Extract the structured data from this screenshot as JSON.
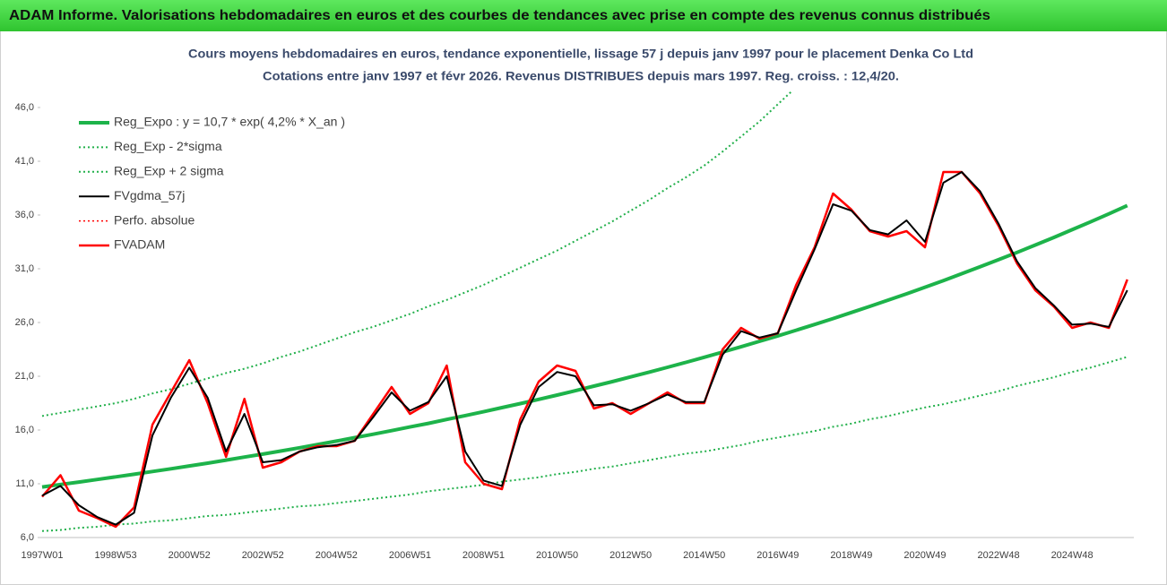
{
  "header": {
    "title": "ADAM Informe. Valorisations hebdomadaires en euros et des courbes de tendances avec prise en compte des revenus connus distribués"
  },
  "chart_data": {
    "type": "line",
    "title": "Cours moyens hebdomadaires en euros, tendance exponentielle, lissage 57 j depuis janv 1997 pour le placement Denka Co Ltd",
    "subtitle": "Cotations entre janv 1997 et févr 2026. Revenus DISTRIBUES depuis mars 1997. Reg. croiss. : 12,4/20.",
    "legend": "upper left",
    "categories": [
      "1997W01",
      null,
      null,
      null,
      "1998W53",
      null,
      null,
      null,
      "2000W52",
      null,
      null,
      null,
      "2002W52",
      null,
      null,
      null,
      "2004W52",
      null,
      null,
      null,
      "2006W51",
      null,
      null,
      null,
      "2008W51",
      null,
      null,
      null,
      "2010W50",
      null,
      null,
      null,
      "2012W50",
      null,
      null,
      null,
      "2014W50",
      null,
      null,
      null,
      "2016W49",
      null,
      null,
      null,
      "2018W49",
      null,
      null,
      null,
      "2020W49",
      null,
      null,
      null,
      "2022W48",
      null,
      null,
      null,
      "2024W48",
      null,
      null,
      null
    ],
    "ylim": [
      6,
      47.5
    ],
    "yticks": [
      {
        "value": 6,
        "label": "6,0"
      },
      {
        "value": 11,
        "label": "11,0"
      },
      {
        "value": 16,
        "label": "16,0"
      },
      {
        "value": 21,
        "label": "21,0"
      },
      {
        "value": 26,
        "label": "26,0"
      },
      {
        "value": 31,
        "label": "31,0"
      },
      {
        "value": 36,
        "label": "36,0"
      },
      {
        "value": 41,
        "label": "41,0"
      },
      {
        "value": 46,
        "label": "46,0"
      }
    ],
    "grid": false,
    "series": [
      {
        "name": "Reg_Expo : y = 10,7 * exp( 4,2% *  X_an )",
        "color": "#1db34a",
        "style": "solid",
        "width": 4,
        "values": [
          10.7,
          10.93,
          11.16,
          11.4,
          11.64,
          11.88,
          12.14,
          12.39,
          12.66,
          12.92,
          13.2,
          13.48,
          13.76,
          14.05,
          14.35,
          14.66,
          14.97,
          15.29,
          15.61,
          15.94,
          16.28,
          16.62,
          16.98,
          17.34,
          17.7,
          18.08,
          18.46,
          18.85,
          19.25,
          19.66,
          20.08,
          20.5,
          20.94,
          21.38,
          21.83,
          22.29,
          22.77,
          23.25,
          23.74,
          24.25,
          24.76,
          25.28,
          25.82,
          26.37,
          26.93,
          27.5,
          28.08,
          28.67,
          29.28,
          29.9,
          30.54,
          31.18,
          31.84,
          32.52,
          33.21,
          33.91,
          34.63,
          35.36,
          36.11,
          36.88
        ]
      },
      {
        "name": "Reg_Exp - 2*sigma",
        "color": "#22b04b",
        "style": "dotted",
        "width": 2,
        "values": [
          6.6,
          6.7,
          6.9,
          7.0,
          7.2,
          7.3,
          7.5,
          7.6,
          7.8,
          8.0,
          8.1,
          8.3,
          8.5,
          8.7,
          8.9,
          9.0,
          9.2,
          9.4,
          9.6,
          9.8,
          10.0,
          10.3,
          10.5,
          10.7,
          10.9,
          11.2,
          11.4,
          11.6,
          11.9,
          12.1,
          12.4,
          12.6,
          12.9,
          13.2,
          13.5,
          13.8,
          14.0,
          14.3,
          14.6,
          15.0,
          15.3,
          15.6,
          15.9,
          16.3,
          16.6,
          17.0,
          17.3,
          17.7,
          18.1,
          18.4,
          18.8,
          19.2,
          19.6,
          20.1,
          20.5,
          20.9,
          21.4,
          21.8,
          22.3,
          22.8
        ]
      },
      {
        "name": "Reg_Exp + 2 sigma",
        "color": "#22b04b",
        "style": "dotted",
        "width": 2,
        "values": [
          17.3,
          17.6,
          17.9,
          18.2,
          18.5,
          18.9,
          19.4,
          19.8,
          20.3,
          20.8,
          21.3,
          21.7,
          22.2,
          22.8,
          23.3,
          23.9,
          24.5,
          25.1,
          25.6,
          26.2,
          26.8,
          27.5,
          28.1,
          28.8,
          29.5,
          30.3,
          31.1,
          31.9,
          32.7,
          33.6,
          34.5,
          35.4,
          36.4,
          37.4,
          38.5,
          39.5,
          40.6,
          41.9,
          43.3,
          44.7,
          46.3,
          47.9,
          null,
          null,
          null,
          null,
          null,
          null,
          null,
          null,
          null,
          null,
          null,
          null,
          null,
          null,
          null,
          null,
          null,
          null
        ]
      },
      {
        "name": "FVgdma_57j",
        "color": "#000000",
        "style": "solid",
        "width": 2,
        "values": [
          9.9,
          10.8,
          9.0,
          7.9,
          7.2,
          8.3,
          15.5,
          19.0,
          21.8,
          19.0,
          14.0,
          17.5,
          13.0,
          13.2,
          14.0,
          14.4,
          14.6,
          15.0,
          17.2,
          19.5,
          17.8,
          18.6,
          21.0,
          14.0,
          11.3,
          10.8,
          16.5,
          20.0,
          21.4,
          21.0,
          18.3,
          18.4,
          17.8,
          18.5,
          19.3,
          18.6,
          18.6,
          23.0,
          25.2,
          24.6,
          25.0,
          29.0,
          32.8,
          37.0,
          36.4,
          34.6,
          34.2,
          35.5,
          33.5,
          39.0,
          40.0,
          38.2,
          35.2,
          31.7,
          29.2,
          27.6,
          25.8,
          25.9,
          25.6,
          29.0
        ]
      },
      {
        "name": "Perfo. absolue",
        "color": "#ff0000",
        "style": "dotted",
        "width": 1.5,
        "values": [
          9.8,
          11.8,
          8.5,
          7.8,
          7.0,
          8.8,
          16.5,
          19.5,
          22.5,
          18.5,
          13.5,
          18.9,
          12.5,
          13.0,
          14.0,
          14.5,
          14.5,
          15.0,
          17.5,
          20.0,
          17.5,
          18.5,
          22.0,
          13.0,
          11.0,
          10.5,
          17.0,
          20.5,
          22.0,
          21.5,
          18.0,
          18.5,
          17.5,
          18.5,
          19.5,
          18.5,
          18.5,
          23.5,
          25.5,
          24.5,
          25.0,
          29.5,
          33.0,
          38.0,
          36.5,
          34.5,
          34.0,
          34.5,
          33.0,
          40.0,
          40.0,
          38.0,
          35.0,
          31.5,
          29.0,
          27.5,
          25.5,
          26.0,
          25.5,
          30.0
        ]
      },
      {
        "name": "FVADAM",
        "color": "#ff0000",
        "style": "solid",
        "width": 2.5,
        "values": [
          9.8,
          11.8,
          8.5,
          7.8,
          7.0,
          8.8,
          16.5,
          19.5,
          22.5,
          18.5,
          13.5,
          18.9,
          12.5,
          13.0,
          14.0,
          14.5,
          14.5,
          15.0,
          17.5,
          20.0,
          17.5,
          18.5,
          22.0,
          13.0,
          11.0,
          10.5,
          17.0,
          20.5,
          22.0,
          21.5,
          18.0,
          18.5,
          17.5,
          18.5,
          19.5,
          18.5,
          18.5,
          23.5,
          25.5,
          24.5,
          25.0,
          29.5,
          33.0,
          38.0,
          36.5,
          34.5,
          34.0,
          34.5,
          33.0,
          40.0,
          40.0,
          38.0,
          35.0,
          31.5,
          29.0,
          27.5,
          25.5,
          26.0,
          25.5,
          30.0
        ]
      }
    ]
  }
}
